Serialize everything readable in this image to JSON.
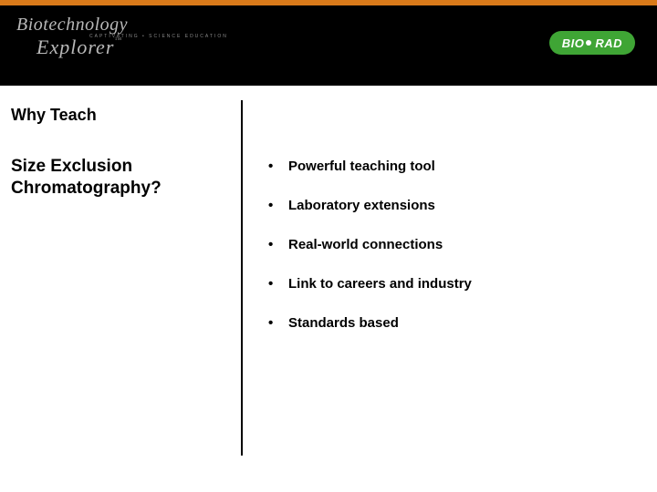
{
  "colors": {
    "accent_orange": "#d97a1a",
    "header_bg": "#000000",
    "logo_pill_bg": "#3fa535",
    "logo_left_color": "#b8b8b8"
  },
  "header": {
    "logo_left_line1": "Biotechnology",
    "logo_left_tag": "CAPTIVATING • SCIENCE EDUCATION",
    "logo_left_line2": "Explorer",
    "logo_left_tm": "™",
    "logo_right_text": "BIO",
    "logo_right_text2": "RAD"
  },
  "left": {
    "overline": "Why Teach",
    "subject": "Size Exclusion Chromatography?"
  },
  "bullets": [
    "Powerful teaching tool",
    "Laboratory extensions",
    "Real-world connections",
    "Link to careers and industry",
    "Standards based"
  ]
}
